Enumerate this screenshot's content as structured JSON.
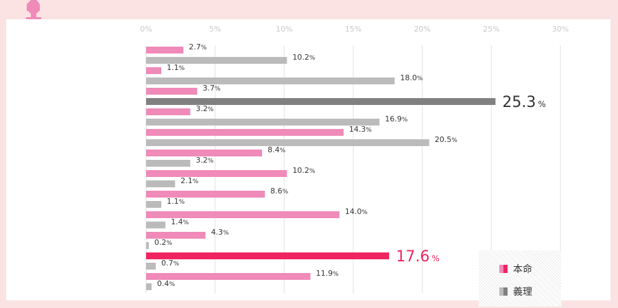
{
  "chart_data": {
    "type": "bar",
    "orientation": "horizontal",
    "xlim": [
      0,
      30
    ],
    "x_ticks": [
      "0%",
      "5%",
      "10%",
      "15%",
      "20%",
      "25%",
      "30%"
    ],
    "grid": true,
    "legend_position": "bottom-right",
    "series": [
      {
        "name": "本命",
        "color": "#ef8ab9",
        "values": [
          2.7,
          1.1,
          3.7,
          3.2,
          14.3,
          8.4,
          10.2,
          8.6,
          14.0,
          4.3,
          17.6,
          11.9
        ],
        "labels": [
          "2.7",
          "1.1",
          "3.7",
          "3.2",
          "14.3",
          "8.4",
          "10.2",
          "8.6",
          "14.0",
          "4.3",
          "17.6",
          "11.9"
        ]
      },
      {
        "name": "義理",
        "color": "#bbbbbb",
        "values": [
          10.2,
          18.0,
          25.3,
          16.9,
          20.5,
          3.2,
          2.1,
          1.1,
          1.4,
          0.2,
          0.7,
          0.4
        ],
        "labels": [
          "10.2",
          "18.0",
          "25.3",
          "16.9",
          "20.5",
          "3.2",
          "2.1",
          "1.1",
          "1.4",
          "0.2",
          "0.7",
          "0.4"
        ]
      }
    ],
    "unit": "%",
    "highlights": [
      {
        "series": 0,
        "index": 10,
        "color": "#f0245f"
      },
      {
        "series": 1,
        "index": 2,
        "color": "#808080"
      }
    ]
  },
  "legend": {
    "items": [
      {
        "label": "本命",
        "color": "#ef8ab9",
        "dark_color": "#f0245f"
      },
      {
        "label": "義理",
        "color": "#bbbbbb",
        "dark_color": "#808080"
      }
    ]
  },
  "decoration": {
    "icon": "woman-silhouette-icon",
    "color": "#ef8ab9"
  }
}
